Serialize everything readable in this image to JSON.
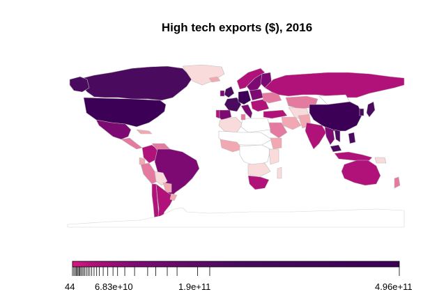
{
  "title": "High tech exports ($), 2016",
  "legend": {
    "min_label": "44",
    "tick_labels": [
      "44",
      "6.83e+10",
      "1.9e+11",
      "4.96e+11"
    ],
    "tick_values": [
      44,
      68300000000,
      190000000000,
      496000000000
    ],
    "max_value": 496000000000,
    "color_low": "#d8177e",
    "color_high": "#3c0056"
  },
  "colors": {
    "no_data": "#ffffff",
    "border": "#bdbdbd",
    "very_low": "#f9dbdb",
    "low": "#f2a8b2",
    "mid_low": "#e57aa0",
    "mid": "#b0127a",
    "high": "#7c0a72",
    "very_high": "#4a0b5e",
    "top": "#3c0056"
  }
}
